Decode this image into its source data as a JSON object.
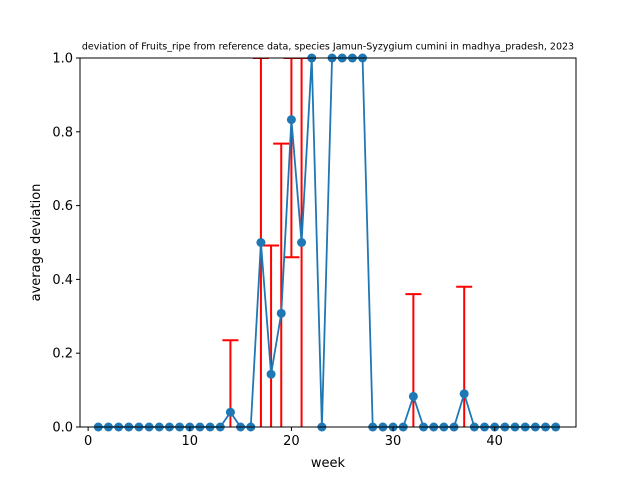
{
  "chart_data": {
    "type": "line",
    "title": "deviation of Fruits_ripe from reference data, species Jamun-Syzygium cumini in madhya_pradesh, 2023",
    "xlabel": "week",
    "ylabel": "average deviation",
    "xlim": [
      -0.8,
      48
    ],
    "ylim": [
      0,
      1.0
    ],
    "xticks": [
      0,
      10,
      20,
      30,
      40
    ],
    "yticks": [
      0.0,
      0.2,
      0.4,
      0.6,
      0.8,
      1.0
    ],
    "grid": false,
    "line_color": "#1f77b4",
    "error_color": "#ff0000",
    "series": [
      {
        "x": [
          1,
          2,
          3,
          4,
          5,
          6,
          7,
          8,
          9,
          10,
          11,
          12,
          13,
          14,
          15,
          16,
          17,
          18,
          19,
          20,
          21,
          22,
          23,
          24,
          25,
          26,
          27,
          28,
          29,
          30,
          31,
          32,
          33,
          34,
          35,
          36,
          37,
          38,
          39,
          40,
          41,
          42,
          43,
          44,
          45,
          46
        ],
        "values": [
          0,
          0,
          0,
          0,
          0,
          0,
          0,
          0,
          0,
          0,
          0,
          0,
          0,
          0.04,
          0,
          0,
          0.5,
          0.143,
          0.308,
          0.833,
          0.5,
          1.0,
          0,
          1.0,
          1.0,
          1.0,
          1.0,
          0,
          0,
          0,
          0,
          0.083,
          0,
          0,
          0,
          0,
          0.09,
          0,
          0,
          0,
          0,
          0,
          0,
          0,
          0,
          0
        ],
        "error_upper": [
          0,
          0,
          0,
          0,
          0,
          0,
          0,
          0,
          0,
          0,
          0,
          0,
          0,
          0.235,
          0,
          0,
          1.0,
          0.492,
          0.768,
          1.0,
          1.0,
          1.0,
          0,
          1.0,
          1.0,
          1.0,
          1.0,
          0,
          0,
          0,
          0,
          0.36,
          0,
          0,
          0,
          0,
          0.38,
          0,
          0,
          0,
          0,
          0,
          0,
          0,
          0,
          0
        ],
        "error_lower": [
          0,
          0,
          0,
          0,
          0,
          0,
          0,
          0,
          0,
          0,
          0,
          0,
          0,
          0,
          0,
          0,
          0,
          0,
          0,
          0.46,
          0,
          1.0,
          0,
          1.0,
          1.0,
          1.0,
          1.0,
          0,
          0,
          0,
          0,
          0,
          0,
          0,
          0,
          0,
          0,
          0,
          0,
          0,
          0,
          0,
          0,
          0,
          0,
          0
        ]
      }
    ]
  }
}
